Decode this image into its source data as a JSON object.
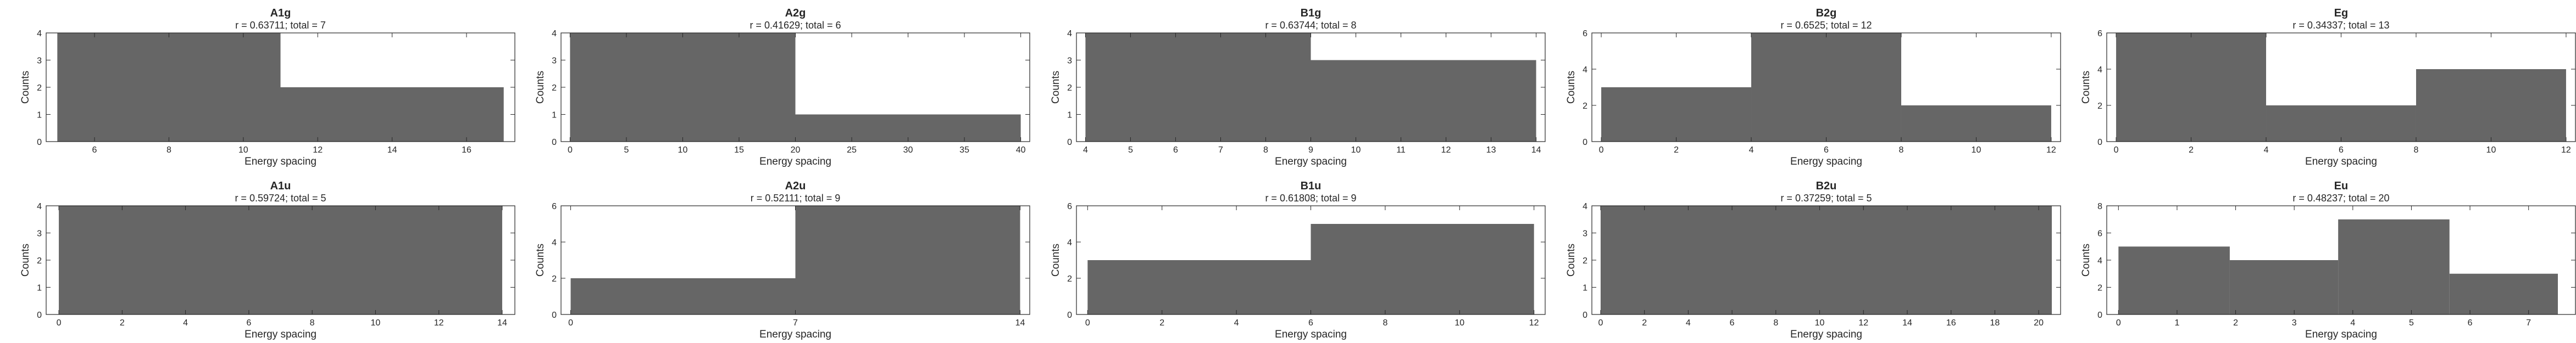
{
  "style": {
    "bar_color": "#666666",
    "axis_color": "#262626"
  },
  "chart_data": [
    {
      "type": "bar",
      "title": "A1g",
      "subtitle": "r = 0.63711; total = 7",
      "xlabel": "Energy spacing",
      "ylabel": "Counts",
      "xlim": [
        4.7,
        17.3
      ],
      "ylim": [
        0,
        4
      ],
      "xticks": [
        6,
        8,
        10,
        12,
        14,
        16
      ],
      "yticks": [
        0,
        1,
        2,
        3,
        4
      ],
      "bins": [
        {
          "x0": 5,
          "x1": 11,
          "count": 4
        },
        {
          "x0": 11,
          "x1": 17,
          "count": 2
        }
      ]
    },
    {
      "type": "bar",
      "title": "A2g",
      "subtitle": "r = 0.41629; total = 6",
      "xlabel": "Energy spacing",
      "ylabel": "Counts",
      "xlim": [
        -0.8,
        40.8
      ],
      "ylim": [
        0,
        4
      ],
      "xticks": [
        0,
        5,
        10,
        15,
        20,
        25,
        30,
        35,
        40
      ],
      "yticks": [
        0,
        1,
        2,
        3,
        4
      ],
      "bins": [
        {
          "x0": 0,
          "x1": 20,
          "count": 4
        },
        {
          "x0": 20,
          "x1": 40,
          "count": 1
        }
      ]
    },
    {
      "type": "bar",
      "title": "B1g",
      "subtitle": "r = 0.63744; total = 8",
      "xlabel": "Energy spacing",
      "ylabel": "Counts",
      "xlim": [
        3.8,
        14.2
      ],
      "ylim": [
        0,
        4
      ],
      "xticks": [
        4,
        5,
        6,
        7,
        8,
        9,
        10,
        11,
        12,
        13,
        14
      ],
      "yticks": [
        0,
        1,
        2,
        3,
        4
      ],
      "bins": [
        {
          "x0": 4,
          "x1": 9,
          "count": 4
        },
        {
          "x0": 9,
          "x1": 14,
          "count": 3
        }
      ]
    },
    {
      "type": "bar",
      "title": "B2g",
      "subtitle": "r = 0.6525; total = 12",
      "xlabel": "Energy spacing",
      "ylabel": "Counts",
      "xlim": [
        -0.25,
        12.25
      ],
      "ylim": [
        0,
        6
      ],
      "xticks": [
        0,
        2,
        4,
        6,
        8,
        10,
        12
      ],
      "yticks": [
        0,
        2,
        4,
        6
      ],
      "bins": [
        {
          "x0": 0,
          "x1": 4,
          "count": 3
        },
        {
          "x0": 4,
          "x1": 8,
          "count": 6
        },
        {
          "x0": 8,
          "x1": 12,
          "count": 2
        }
      ]
    },
    {
      "type": "bar",
      "title": "Eg",
      "subtitle": "r = 0.34337; total = 13",
      "xlabel": "Energy spacing",
      "ylabel": "Counts",
      "xlim": [
        -0.25,
        12.25
      ],
      "ylim": [
        0,
        6
      ],
      "xticks": [
        0,
        2,
        4,
        6,
        8,
        10,
        12
      ],
      "yticks": [
        0,
        2,
        4,
        6
      ],
      "bins": [
        {
          "x0": 0,
          "x1": 4,
          "count": 6
        },
        {
          "x0": 4,
          "x1": 8,
          "count": 2
        },
        {
          "x0": 8,
          "x1": 12,
          "count": 4
        }
      ]
    },
    {
      "type": "bar",
      "title": "A1u",
      "subtitle": "r = 0.59724; total = 5",
      "xlabel": "Energy spacing",
      "ylabel": "Counts",
      "xlim": [
        -0.4,
        14.4
      ],
      "ylim": [
        0,
        4
      ],
      "xticks": [
        0,
        2,
        4,
        6,
        8,
        10,
        12,
        14
      ],
      "yticks": [
        0,
        1,
        2,
        3,
        4
      ],
      "bins": [
        {
          "x0": 0,
          "x1": 14,
          "count": 4
        }
      ]
    },
    {
      "type": "bar",
      "title": "A2u",
      "subtitle": "r = 0.52111; total = 9",
      "xlabel": "Energy spacing",
      "ylabel": "Counts",
      "xlim": [
        -0.3,
        14.3
      ],
      "ylim": [
        0,
        6
      ],
      "xticks": [
        0,
        7,
        14
      ],
      "yticks": [
        0,
        2,
        4,
        6
      ],
      "bins": [
        {
          "x0": 0,
          "x1": 7,
          "count": 2
        },
        {
          "x0": 7,
          "x1": 14,
          "count": 6
        }
      ]
    },
    {
      "type": "bar",
      "title": "B1u",
      "subtitle": "r = 0.61808; total = 9",
      "xlabel": "Energy spacing",
      "ylabel": "Counts",
      "xlim": [
        -0.3,
        12.3
      ],
      "ylim": [
        0,
        6
      ],
      "xticks": [
        0,
        2,
        4,
        6,
        8,
        10,
        12
      ],
      "yticks": [
        0,
        2,
        4,
        6
      ],
      "bins": [
        {
          "x0": 0,
          "x1": 6,
          "count": 3
        },
        {
          "x0": 6,
          "x1": 12,
          "count": 5
        }
      ]
    },
    {
      "type": "bar",
      "title": "B2u",
      "subtitle": "r = 0.37259; total = 5",
      "xlabel": "Energy spacing",
      "ylabel": "Counts",
      "xlim": [
        -0.4,
        21.0
      ],
      "ylim": [
        0,
        4
      ],
      "xticks": [
        0,
        2,
        4,
        6,
        8,
        10,
        12,
        14,
        16,
        18,
        20
      ],
      "yticks": [
        0,
        1,
        2,
        3,
        4
      ],
      "bins": [
        {
          "x0": 0,
          "x1": 20.6,
          "count": 4
        }
      ]
    },
    {
      "type": "bar",
      "title": "Eu",
      "subtitle": "r = 0.48237; total = 20",
      "xlabel": "Energy spacing",
      "ylabel": "Counts",
      "xlim": [
        -0.2,
        7.8
      ],
      "ylim": [
        0,
        8
      ],
      "xticks": [
        0,
        1,
        2,
        3,
        4,
        5,
        6,
        7
      ],
      "yticks": [
        0,
        2,
        4,
        6,
        8
      ],
      "bins": [
        {
          "x0": 0,
          "x1": 1.9,
          "count": 5
        },
        {
          "x0": 1.9,
          "x1": 3.75,
          "count": 4
        },
        {
          "x0": 3.75,
          "x1": 5.65,
          "count": 7
        },
        {
          "x0": 5.65,
          "x1": 7.5,
          "count": 3
        }
      ]
    }
  ]
}
